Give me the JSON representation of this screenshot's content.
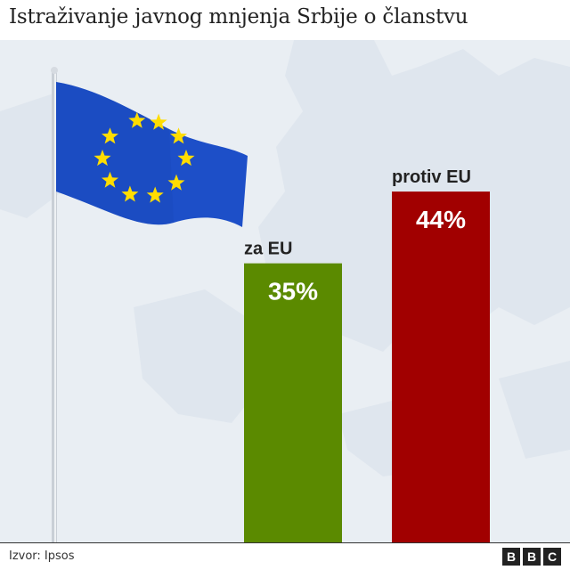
{
  "header": {
    "title": "Istraživanje javnog mnjenja Srbije o članstvu"
  },
  "footer": {
    "source": "Izvor: Ipsos",
    "logo": [
      "B",
      "B",
      "C"
    ]
  },
  "colors": {
    "background_map": "#e9eef3",
    "map_land": "#dfe6ee",
    "flag_blue": "#1d4fc8",
    "flag_star": "#ffdd00"
  },
  "chart_data": {
    "type": "bar",
    "title": "Istraživanje javnog mnjenja Srbije o članstvu",
    "xlabel": "",
    "ylabel": "",
    "ylim": [
      0,
      63
    ],
    "grid": false,
    "categories": [
      "za EU",
      "protiv EU"
    ],
    "values": [
      35,
      44
    ],
    "value_labels": [
      "35%",
      "44%"
    ],
    "colors": [
      "#5b8a00",
      "#a10000"
    ]
  }
}
